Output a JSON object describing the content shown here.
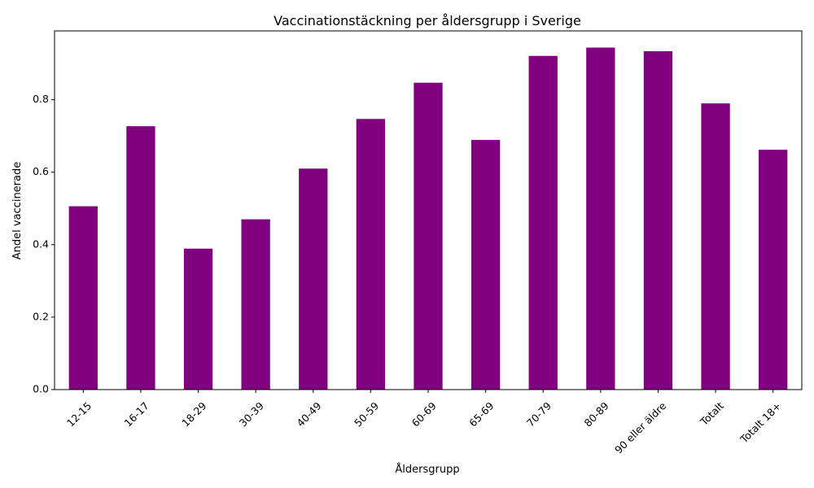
{
  "chart_data": {
    "type": "bar",
    "title": "Vaccinationstäckning per åldersgrupp i Sverige",
    "xlabel": "Åldersgrupp",
    "ylabel": "Andel vaccinerade",
    "categories": [
      "12-15",
      "16-17",
      "18-29",
      "30-39",
      "40-49",
      "50-59",
      "60-69",
      "65-69",
      "70-79",
      "80-89",
      "90 eller äldre",
      "Totalt",
      "Totalt 18+"
    ],
    "values": [
      0.506,
      0.727,
      0.389,
      0.47,
      0.61,
      0.747,
      0.847,
      0.689,
      0.921,
      0.944,
      0.934,
      0.79,
      0.662
    ],
    "ylim": [
      0,
      0.99
    ],
    "yticks": [
      "0.0",
      "0.2",
      "0.4",
      "0.6",
      "0.8"
    ],
    "ytick_values": [
      0,
      0.2,
      0.4,
      0.6,
      0.8
    ],
    "bar_color": "#800080",
    "grid": false,
    "legend": "none"
  }
}
